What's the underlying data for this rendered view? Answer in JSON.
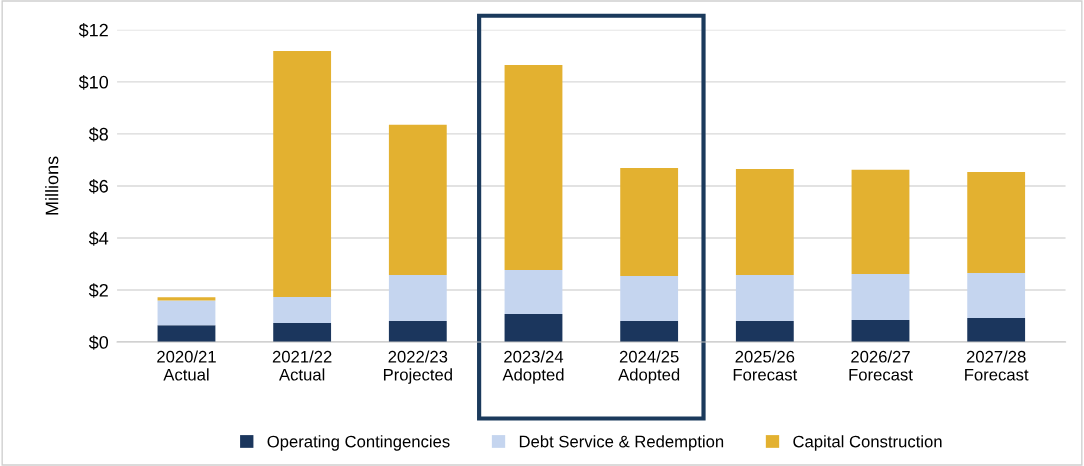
{
  "chart_data": {
    "type": "bar",
    "stacked": true,
    "ylabel": "Millions",
    "categories": [
      "2020/21\nActual",
      "2021/22\nActual",
      "2022/23\nProjected",
      "2023/24\nAdopted",
      "2024/25\nAdopted",
      "2025/26\nForecast",
      "2026/27\nForecast",
      "2027/28\nForecast"
    ],
    "series": [
      {
        "name": "Operating Contingencies",
        "color": "#1b365d",
        "values": [
          0.65,
          0.73,
          0.81,
          1.08,
          0.81,
          0.81,
          0.85,
          0.92
        ]
      },
      {
        "name": "Debt Service & Redemption",
        "color": "#c5d5ef",
        "values": [
          0.95,
          1.0,
          1.77,
          1.69,
          1.73,
          1.77,
          1.77,
          1.73
        ]
      },
      {
        "name": "Capital Construction",
        "color": "#e3b130",
        "values": [
          0.12,
          9.46,
          5.77,
          7.88,
          4.15,
          4.07,
          4.0,
          3.89
        ]
      }
    ],
    "ylim": [
      0,
      12
    ],
    "yticks": [
      {
        "value": 0,
        "label": "$0"
      },
      {
        "value": 2,
        "label": "$2"
      },
      {
        "value": 4,
        "label": "$4"
      },
      {
        "value": 6,
        "label": "$6"
      },
      {
        "value": 8,
        "label": "$8"
      },
      {
        "value": 10,
        "label": "$10"
      },
      {
        "value": 12,
        "label": "$12"
      }
    ],
    "grid": "y",
    "legend": "bottom"
  }
}
